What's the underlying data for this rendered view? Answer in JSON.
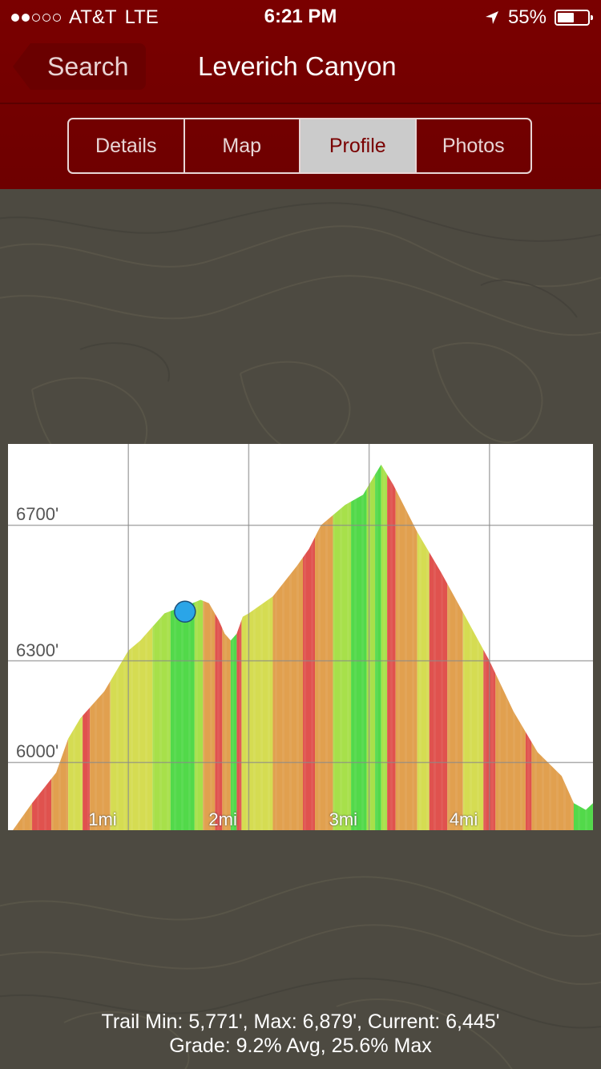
{
  "status_bar": {
    "carrier": "AT&T",
    "network": "LTE",
    "time": "6:21 PM",
    "battery": "55%",
    "battery_level": 0.55,
    "signal_bars_filled": 2,
    "signal_bars_total": 5
  },
  "navbar": {
    "back_label": "Search",
    "title": "Leverich Canyon"
  },
  "tabs": [
    {
      "label": "Details",
      "active": false
    },
    {
      "label": "Map",
      "active": false
    },
    {
      "label": "Profile",
      "active": true
    },
    {
      "label": "Photos",
      "active": false
    }
  ],
  "chart_data": {
    "type": "area",
    "ylim": [
      5800,
      6940
    ],
    "xlim": [
      0,
      4.86
    ],
    "ytick_labels": [
      "6000'",
      "6300'",
      "6700'"
    ],
    "yticks": [
      6000,
      6300,
      6700
    ],
    "xtick_labels": [
      "1mi",
      "2mi",
      "3mi",
      "4mi"
    ],
    "xticks": [
      1,
      2,
      3,
      4
    ],
    "grid": true,
    "x": [
      0,
      0.2,
      0.4,
      0.5,
      0.6,
      0.8,
      0.9,
      1.0,
      1.1,
      1.2,
      1.3,
      1.45,
      1.5,
      1.6,
      1.67,
      1.75,
      1.8,
      1.85,
      1.9,
      1.95,
      2.0,
      2.2,
      2.4,
      2.5,
      2.6,
      2.8,
      2.95,
      3.0,
      3.05,
      3.1,
      3.2,
      3.4,
      3.6,
      3.8,
      4.0,
      4.2,
      4.4,
      4.6,
      4.7,
      4.8,
      4.86
    ],
    "y": [
      5780,
      5880,
      5970,
      6070,
      6130,
      6210,
      6270,
      6330,
      6360,
      6400,
      6440,
      6460,
      6465,
      6480,
      6470,
      6420,
      6380,
      6360,
      6380,
      6430,
      6440,
      6490,
      6580,
      6630,
      6700,
      6760,
      6790,
      6820,
      6850,
      6879,
      6820,
      6680,
      6560,
      6430,
      6300,
      6150,
      6030,
      5960,
      5880,
      5860,
      5880
    ],
    "current_marker": {
      "x": 1.47,
      "y": 6445
    },
    "grade_colors": {
      "flat": "#52d94a",
      "gentle": "#a7e04a",
      "moderate": "#d5dc52",
      "steep": "#e1a04f",
      "very_steep": "#e0524e"
    },
    "grade_bands": [
      {
        "from": 0.0,
        "to": 0.2,
        "grade": "steep"
      },
      {
        "from": 0.2,
        "to": 0.36,
        "grade": "very_steep"
      },
      {
        "from": 0.36,
        "to": 0.5,
        "grade": "steep"
      },
      {
        "from": 0.5,
        "to": 0.62,
        "grade": "moderate"
      },
      {
        "from": 0.62,
        "to": 0.68,
        "grade": "very_steep"
      },
      {
        "from": 0.68,
        "to": 0.85,
        "grade": "steep"
      },
      {
        "from": 0.85,
        "to": 1.0,
        "grade": "moderate"
      },
      {
        "from": 1.0,
        "to": 1.2,
        "grade": "moderate"
      },
      {
        "from": 1.2,
        "to": 1.35,
        "grade": "gentle"
      },
      {
        "from": 1.35,
        "to": 1.55,
        "grade": "flat"
      },
      {
        "from": 1.55,
        "to": 1.62,
        "grade": "gentle"
      },
      {
        "from": 1.62,
        "to": 1.72,
        "grade": "steep"
      },
      {
        "from": 1.72,
        "to": 1.78,
        "grade": "very_steep"
      },
      {
        "from": 1.78,
        "to": 1.85,
        "grade": "steep"
      },
      {
        "from": 1.85,
        "to": 1.9,
        "grade": "flat"
      },
      {
        "from": 1.9,
        "to": 1.94,
        "grade": "very_steep"
      },
      {
        "from": 1.94,
        "to": 2.2,
        "grade": "moderate"
      },
      {
        "from": 2.2,
        "to": 2.45,
        "grade": "steep"
      },
      {
        "from": 2.45,
        "to": 2.55,
        "grade": "very_steep"
      },
      {
        "from": 2.55,
        "to": 2.7,
        "grade": "steep"
      },
      {
        "from": 2.7,
        "to": 2.85,
        "grade": "gentle"
      },
      {
        "from": 2.85,
        "to": 2.98,
        "grade": "flat"
      },
      {
        "from": 2.98,
        "to": 3.05,
        "grade": "gentle"
      },
      {
        "from": 3.05,
        "to": 3.1,
        "grade": "flat"
      },
      {
        "from": 3.1,
        "to": 3.15,
        "grade": "gentle"
      },
      {
        "from": 3.15,
        "to": 3.22,
        "grade": "very_steep"
      },
      {
        "from": 3.22,
        "to": 3.4,
        "grade": "steep"
      },
      {
        "from": 3.4,
        "to": 3.5,
        "grade": "moderate"
      },
      {
        "from": 3.5,
        "to": 3.65,
        "grade": "very_steep"
      },
      {
        "from": 3.65,
        "to": 3.78,
        "grade": "steep"
      },
      {
        "from": 3.78,
        "to": 3.95,
        "grade": "moderate"
      },
      {
        "from": 3.95,
        "to": 4.05,
        "grade": "very_steep"
      },
      {
        "from": 4.05,
        "to": 4.3,
        "grade": "steep"
      },
      {
        "from": 4.3,
        "to": 4.35,
        "grade": "very_steep"
      },
      {
        "from": 4.35,
        "to": 4.7,
        "grade": "steep"
      },
      {
        "from": 4.7,
        "to": 4.86,
        "grade": "flat"
      }
    ]
  },
  "stats": {
    "line1": "Trail Min: 5,771', Max: 6,879', Current: 6,445'",
    "line2": "Grade: 9.2% Avg, 25.6% Max"
  }
}
